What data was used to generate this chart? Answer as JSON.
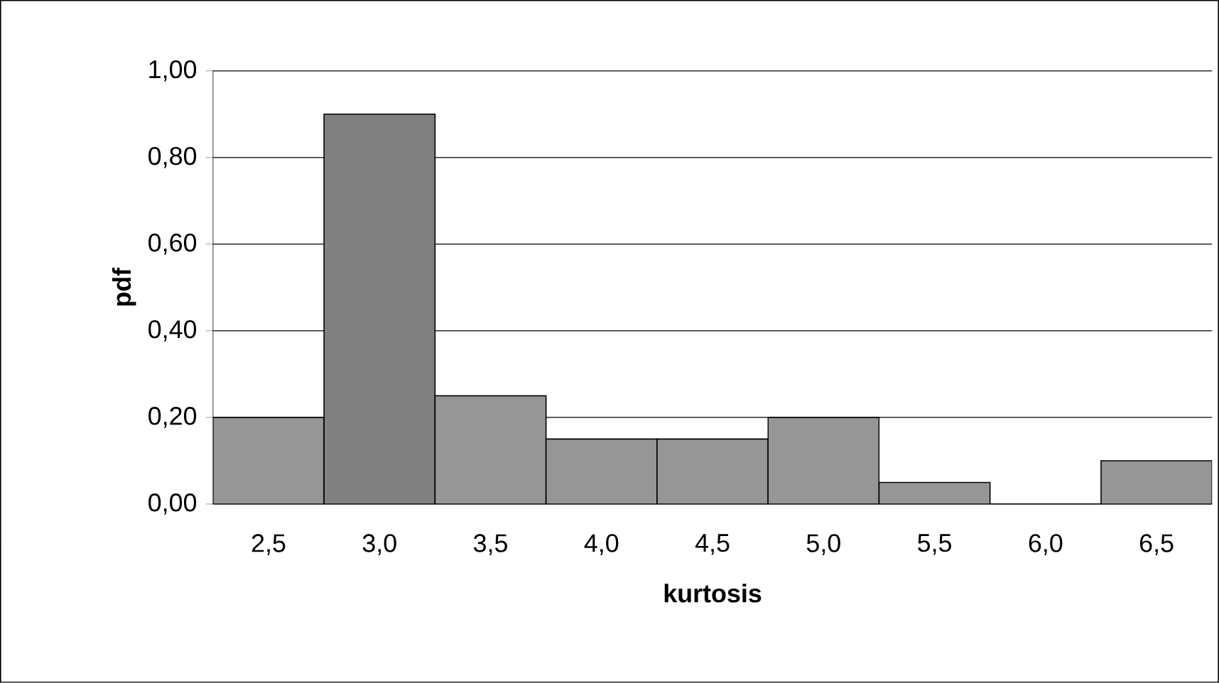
{
  "chart_data": {
    "type": "bar",
    "xlabel": "kurtosis",
    "ylabel": "pdf",
    "categories": [
      "2,5",
      "3,0",
      "3,5",
      "4,0",
      "4,5",
      "5,0",
      "5,5",
      "6,0",
      "6,5"
    ],
    "values": [
      0.2,
      0.9,
      0.25,
      0.15,
      0.15,
      0.2,
      0.05,
      0,
      0.1
    ],
    "colors": [
      "#969696",
      "#808080",
      "#969696",
      "#969696",
      "#969696",
      "#969696",
      "#969696",
      "#969696",
      "#969696"
    ],
    "ylim": [
      0,
      1
    ],
    "yticks": [
      {
        "value": 0,
        "label": "0,00"
      },
      {
        "value": 0.2,
        "label": "0,20"
      },
      {
        "value": 0.4,
        "label": "0,40"
      },
      {
        "value": 0.6,
        "label": "0,60"
      },
      {
        "value": 0.8,
        "label": "0,80"
      },
      {
        "value": 1,
        "label": "1,00"
      }
    ],
    "grid": "y"
  }
}
